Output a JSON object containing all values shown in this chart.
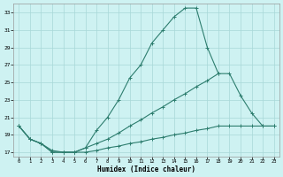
{
  "xlabel": "Humidex (Indice chaleur)",
  "line_color": "#2d7d6e",
  "bg_color": "#cef2f2",
  "grid_color": "#a8d8d8",
  "ylim": [
    16.5,
    34
  ],
  "xlim": [
    -0.5,
    23.5
  ],
  "yticks": [
    17,
    19,
    21,
    23,
    25,
    27,
    29,
    31,
    33
  ],
  "xticks": [
    0,
    1,
    2,
    3,
    4,
    5,
    6,
    7,
    8,
    9,
    10,
    11,
    12,
    13,
    14,
    15,
    16,
    17,
    18,
    19,
    20,
    21,
    22,
    23
  ],
  "curve_top_x": [
    0,
    1,
    2,
    3,
    4,
    5,
    6,
    7,
    8,
    9,
    10,
    11,
    12,
    13,
    14,
    15,
    16,
    17,
    18
  ],
  "curve_top_y": [
    20.0,
    18.5,
    18.0,
    17.0,
    17.0,
    17.0,
    17.5,
    19.5,
    21.0,
    23.0,
    25.5,
    27.0,
    29.5,
    31.0,
    32.5,
    33.5,
    33.5,
    29.0,
    26.0
  ],
  "curve_mid_x": [
    0,
    1,
    2,
    3,
    4,
    5,
    6,
    7,
    8,
    9,
    10,
    11,
    12,
    13,
    14,
    15,
    16,
    17,
    18,
    19,
    20,
    21,
    22,
    23
  ],
  "curve_mid_y": [
    20.0,
    18.5,
    18.0,
    17.0,
    17.0,
    17.0,
    17.5,
    18.0,
    18.5,
    19.2,
    20.0,
    20.7,
    21.5,
    22.2,
    23.0,
    23.7,
    24.5,
    25.2,
    26.0,
    26.0,
    23.5,
    21.5,
    20.0,
    20.0
  ],
  "curve_low_x": [
    0,
    1,
    2,
    3,
    4,
    5,
    6,
    7,
    8,
    9,
    10,
    11,
    12,
    13,
    14,
    15,
    16,
    17,
    18,
    19,
    20,
    21,
    22,
    23
  ],
  "curve_low_y": [
    20.0,
    18.5,
    18.0,
    17.2,
    17.0,
    17.0,
    17.0,
    17.2,
    17.5,
    17.7,
    18.0,
    18.2,
    18.5,
    18.7,
    19.0,
    19.2,
    19.5,
    19.7,
    20.0,
    20.0,
    20.0,
    20.0,
    20.0,
    20.0
  ]
}
